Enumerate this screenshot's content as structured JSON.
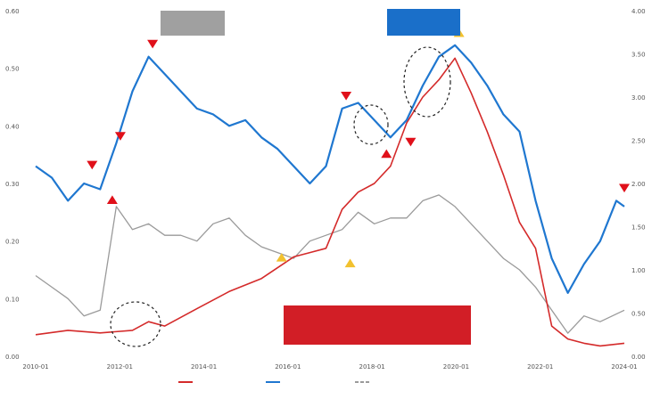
{
  "chart_data": {
    "type": "line",
    "title": "",
    "left_axis_ticks": [
      "0.60",
      "0.50",
      "0.40",
      "0.30",
      "0.20",
      "0.10",
      "0.00"
    ],
    "right_axis_ticks": [
      "4.00",
      "3.50",
      "3.00",
      "2.50",
      "2.00",
      "1.50",
      "1.00",
      "0.50",
      "0.00"
    ],
    "x_ticks": [
      "2010-01",
      "2012-01",
      "2014-01",
      "2016-01",
      "2018-01",
      "2020-01",
      "2022-01",
      "2024-01"
    ],
    "ylim_left": [
      0.0,
      0.6
    ],
    "ylim_right": [
      0.0,
      4.0
    ],
    "x_range": [
      2010.0,
      2024.6
    ],
    "colors": {
      "blue": "#1f77d0",
      "red": "#d42a2a",
      "gray": "#9a9a9a",
      "triangle_red": "#e0101a",
      "triangle_yellow": "#f2c12e"
    },
    "series": [
      {
        "name": "",
        "color": "#1f77d0",
        "axis": "left",
        "x": [
          2010.0,
          2010.4,
          2010.8,
          2011.2,
          2011.6,
          2012.0,
          2012.4,
          2012.8,
          2013.2,
          2013.6,
          2014.0,
          2014.4,
          2014.8,
          2015.2,
          2015.6,
          2016.0,
          2016.4,
          2016.8,
          2017.2,
          2017.6,
          2018.0,
          2018.4,
          2018.8,
          2019.2,
          2019.6,
          2020.0,
          2020.4,
          2020.8,
          2021.2,
          2021.6,
          2022.0,
          2022.4,
          2022.8,
          2023.2,
          2023.6,
          2024.0,
          2024.4,
          2024.6
        ],
        "y": [
          0.33,
          0.31,
          0.27,
          0.3,
          0.29,
          0.37,
          0.46,
          0.52,
          0.49,
          0.46,
          0.43,
          0.42,
          0.4,
          0.41,
          0.38,
          0.36,
          0.33,
          0.3,
          0.33,
          0.43,
          0.44,
          0.41,
          0.38,
          0.41,
          0.47,
          0.52,
          0.54,
          0.51,
          0.47,
          0.42,
          0.39,
          0.27,
          0.17,
          0.11,
          0.16,
          0.2,
          0.27,
          0.26
        ]
      },
      {
        "name": "",
        "color": "#d42a2a",
        "axis": "right",
        "x": [
          2010.0,
          2010.8,
          2011.6,
          2012.4,
          2012.8,
          2013.2,
          2014.0,
          2014.8,
          2015.6,
          2016.4,
          2016.8,
          2017.2,
          2017.6,
          2018.0,
          2018.4,
          2018.8,
          2019.2,
          2019.6,
          2020.0,
          2020.4,
          2020.8,
          2021.2,
          2021.6,
          2022.0,
          2022.4,
          2022.8,
          2023.2,
          2023.6,
          2024.0,
          2024.6
        ],
        "y": [
          0.25,
          0.3,
          0.27,
          0.3,
          0.4,
          0.35,
          0.55,
          0.75,
          0.9,
          1.15,
          1.2,
          1.25,
          1.7,
          1.9,
          2.0,
          2.2,
          2.7,
          3.0,
          3.2,
          3.45,
          3.05,
          2.6,
          2.1,
          1.55,
          1.25,
          0.35,
          0.2,
          0.15,
          0.12,
          0.15
        ]
      },
      {
        "name": "",
        "color": "#9a9a9a",
        "axis": "left",
        "x": [
          2010.0,
          2010.4,
          2010.8,
          2011.2,
          2011.6,
          2012.0,
          2012.4,
          2012.8,
          2013.2,
          2013.6,
          2014.0,
          2014.4,
          2014.8,
          2015.2,
          2015.6,
          2016.0,
          2016.4,
          2016.8,
          2017.2,
          2017.6,
          2018.0,
          2018.4,
          2018.8,
          2019.2,
          2019.6,
          2020.0,
          2020.4,
          2020.8,
          2021.2,
          2021.6,
          2022.0,
          2022.4,
          2022.8,
          2023.2,
          2023.6,
          2024.0,
          2024.6
        ],
        "y": [
          0.14,
          0.12,
          0.1,
          0.07,
          0.08,
          0.26,
          0.22,
          0.23,
          0.21,
          0.21,
          0.2,
          0.23,
          0.24,
          0.21,
          0.19,
          0.18,
          0.17,
          0.2,
          0.21,
          0.22,
          0.25,
          0.23,
          0.24,
          0.24,
          0.27,
          0.28,
          0.26,
          0.23,
          0.2,
          0.17,
          0.15,
          0.12,
          0.08,
          0.04,
          0.07,
          0.06,
          0.08
        ]
      }
    ],
    "markers": [
      {
        "x": 2011.4,
        "y": 0.33,
        "shape": "triangle-down",
        "color": "#e0101a"
      },
      {
        "x": 2011.9,
        "y": 0.27,
        "shape": "triangle-up",
        "color": "#e0101a"
      },
      {
        "x": 2012.1,
        "y": 0.38,
        "shape": "triangle-down",
        "color": "#e0101a"
      },
      {
        "x": 2012.9,
        "y": 0.54,
        "shape": "triangle-down",
        "color": "#e0101a"
      },
      {
        "x": 2017.7,
        "y": 0.45,
        "shape": "triangle-down",
        "color": "#e0101a"
      },
      {
        "x": 2018.7,
        "y": 0.35,
        "shape": "triangle-up",
        "color": "#e0101a"
      },
      {
        "x": 2019.3,
        "y": 0.37,
        "shape": "triangle-down",
        "color": "#e0101a"
      },
      {
        "x": 2016.1,
        "y": 0.17,
        "shape": "triangle-up",
        "color": "#f2c12e"
      },
      {
        "x": 2017.8,
        "y": 0.16,
        "shape": "triangle-up",
        "color": "#f2c12e"
      },
      {
        "x": 2020.5,
        "y": 0.56,
        "shape": "triangle-up",
        "color": "#f2c12e"
      },
      {
        "x": 2024.6,
        "y": 0.29,
        "shape": "triangle-down",
        "color": "#e0101a"
      }
    ],
    "grid": false,
    "legend_position": "bottom"
  }
}
